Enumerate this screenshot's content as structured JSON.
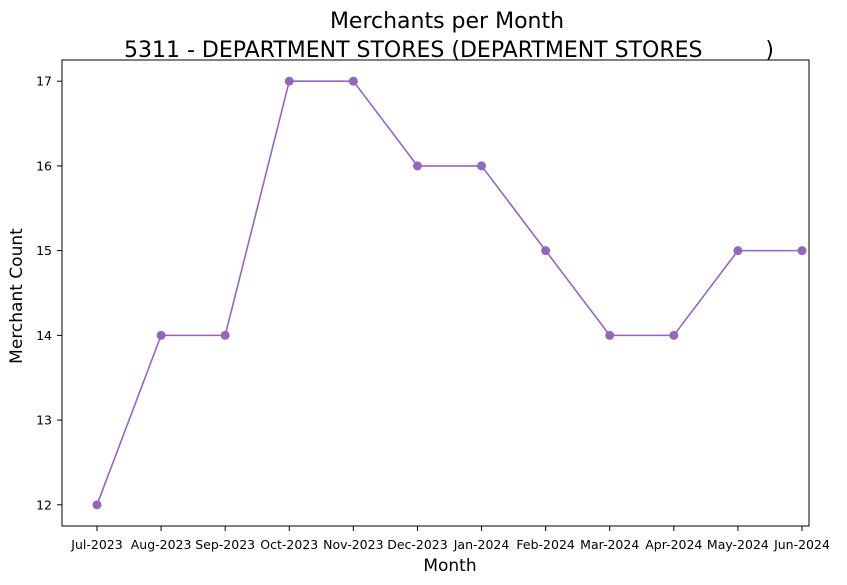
{
  "chart_data": {
    "type": "line",
    "title": "Merchants per Month",
    "subtitle": "5311 - DEPARTMENT STORES (DEPARTMENT STORES         )",
    "xlabel": "Month",
    "ylabel": "Merchant Count",
    "categories": [
      "Jul-2023",
      "Aug-2023",
      "Sep-2023",
      "Oct-2023",
      "Nov-2023",
      "Dec-2023",
      "Jan-2024",
      "Feb-2024",
      "Mar-2024",
      "Apr-2024",
      "May-2024",
      "Jun-2024"
    ],
    "series": [
      {
        "values": [
          12,
          14,
          14,
          17,
          17,
          16,
          16,
          15,
          14,
          14,
          15,
          15
        ],
        "color": "#9467bd",
        "marker": "circle"
      }
    ],
    "yticks": [
      12,
      13,
      14,
      15,
      16,
      17
    ],
    "ylim": [
      11.75,
      17.25
    ],
    "grid": false,
    "legend": "none"
  }
}
